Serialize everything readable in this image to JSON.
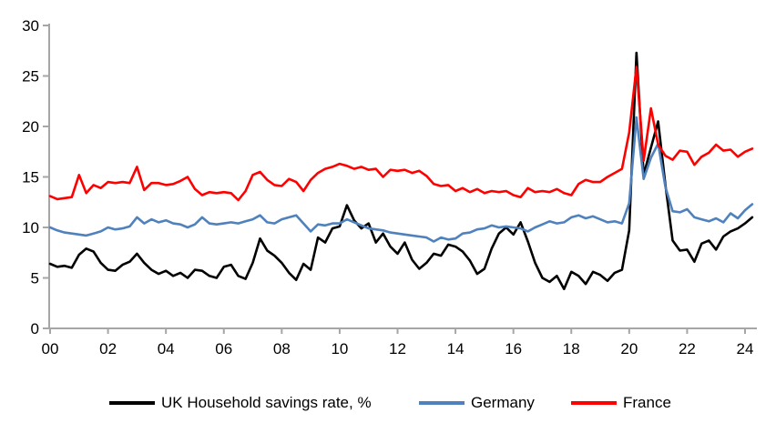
{
  "chart_data": {
    "type": "line",
    "title": "",
    "x_axis": {
      "frequency": "quarterly",
      "start_year": 2000,
      "step_years": 0.25,
      "range": [
        2000,
        2024.25
      ],
      "tick_years": [
        2000,
        2002,
        2004,
        2006,
        2008,
        2010,
        2012,
        2014,
        2016,
        2018,
        2020,
        2022,
        2024
      ],
      "tick_labels": [
        "00",
        "02",
        "04",
        "06",
        "08",
        "10",
        "12",
        "14",
        "16",
        "18",
        "20",
        "22",
        "24"
      ]
    },
    "y_axis": {
      "range": [
        0,
        30
      ],
      "ticks": [
        0,
        5,
        10,
        15,
        20,
        25,
        30
      ],
      "tick_labels": [
        "0",
        "5",
        "10",
        "15",
        "20",
        "25",
        "30"
      ]
    },
    "grid": false,
    "legend_position": "bottom",
    "series": [
      {
        "name": "UK Household savings rate, %",
        "color": "#000000",
        "values": [
          6.4,
          6.1,
          6.2,
          6.0,
          7.3,
          7.9,
          7.6,
          6.5,
          5.8,
          5.7,
          6.3,
          6.6,
          7.4,
          6.5,
          5.8,
          5.4,
          5.7,
          5.2,
          5.5,
          5.0,
          5.8,
          5.7,
          5.2,
          5.0,
          6.1,
          6.3,
          5.2,
          4.9,
          6.5,
          8.9,
          7.7,
          7.2,
          6.5,
          5.5,
          4.8,
          6.4,
          5.8,
          9.0,
          8.5,
          9.9,
          10.1,
          12.2,
          10.7,
          9.9,
          10.4,
          8.5,
          9.4,
          8.1,
          7.4,
          8.5,
          6.8,
          5.9,
          6.5,
          7.4,
          7.2,
          8.3,
          8.1,
          7.6,
          6.7,
          5.4,
          5.9,
          7.9,
          9.4,
          10.0,
          9.3,
          10.5,
          8.6,
          6.5,
          5.0,
          4.6,
          5.2,
          3.9,
          5.6,
          5.2,
          4.4,
          5.6,
          5.3,
          4.7,
          5.5,
          5.8,
          9.7,
          27.3,
          15.2,
          17.9,
          20.5,
          14.2,
          8.7,
          7.7,
          7.8,
          6.6,
          8.4,
          8.7,
          7.8,
          9.1,
          9.6,
          9.9,
          10.4,
          11.0
        ]
      },
      {
        "name": "Germany",
        "color": "#4f81bd",
        "values": [
          10.0,
          9.7,
          9.5,
          9.4,
          9.3,
          9.2,
          9.4,
          9.6,
          10.0,
          9.8,
          9.9,
          10.1,
          11.0,
          10.4,
          10.8,
          10.5,
          10.7,
          10.4,
          10.3,
          10.0,
          10.3,
          11.0,
          10.4,
          10.3,
          10.4,
          10.5,
          10.4,
          10.6,
          10.8,
          11.2,
          10.5,
          10.4,
          10.8,
          11.0,
          11.2,
          10.4,
          9.6,
          10.3,
          10.2,
          10.4,
          10.4,
          10.8,
          10.5,
          10.2,
          9.9,
          9.8,
          9.7,
          9.5,
          9.4,
          9.3,
          9.2,
          9.1,
          9.0,
          8.6,
          9.0,
          8.8,
          8.9,
          9.4,
          9.5,
          9.8,
          9.9,
          10.2,
          10.0,
          10.1,
          10.0,
          9.9,
          9.6,
          10.0,
          10.3,
          10.6,
          10.4,
          10.5,
          11.0,
          11.2,
          10.9,
          11.1,
          10.8,
          10.5,
          10.6,
          10.4,
          12.4,
          20.9,
          14.8,
          16.9,
          18.3,
          14.0,
          11.6,
          11.5,
          11.8,
          11.0,
          10.8,
          10.6,
          10.9,
          10.5,
          11.4,
          10.9,
          11.7,
          12.3
        ]
      },
      {
        "name": "France",
        "color": "#ff0000",
        "values": [
          13.1,
          12.8,
          12.9,
          13.0,
          15.2,
          13.4,
          14.2,
          13.9,
          14.5,
          14.4,
          14.5,
          14.4,
          16.0,
          13.7,
          14.4,
          14.4,
          14.2,
          14.3,
          14.6,
          15.0,
          13.8,
          13.2,
          13.5,
          13.4,
          13.5,
          13.4,
          12.7,
          13.6,
          15.2,
          15.5,
          14.7,
          14.2,
          14.1,
          14.8,
          14.5,
          13.6,
          14.7,
          15.4,
          15.8,
          16.0,
          16.3,
          16.1,
          15.8,
          16.0,
          15.7,
          15.8,
          15.0,
          15.7,
          15.6,
          15.7,
          15.4,
          15.6,
          15.1,
          14.3,
          14.1,
          14.2,
          13.6,
          13.9,
          13.5,
          13.8,
          13.4,
          13.6,
          13.5,
          13.6,
          13.2,
          13.0,
          13.9,
          13.5,
          13.6,
          13.5,
          13.8,
          13.4,
          13.2,
          14.3,
          14.7,
          14.5,
          14.5,
          15.0,
          15.4,
          15.8,
          19.4,
          25.9,
          16.6,
          21.8,
          18.2,
          17.1,
          16.7,
          17.6,
          17.5,
          16.2,
          17.0,
          17.4,
          18.2,
          17.6,
          17.7,
          17.0,
          17.5,
          17.8
        ]
      }
    ]
  },
  "styles": {
    "background": "#ffffff",
    "axis_color": "#a6a6a6",
    "label_color": "#000000",
    "line_width": 2.6
  }
}
